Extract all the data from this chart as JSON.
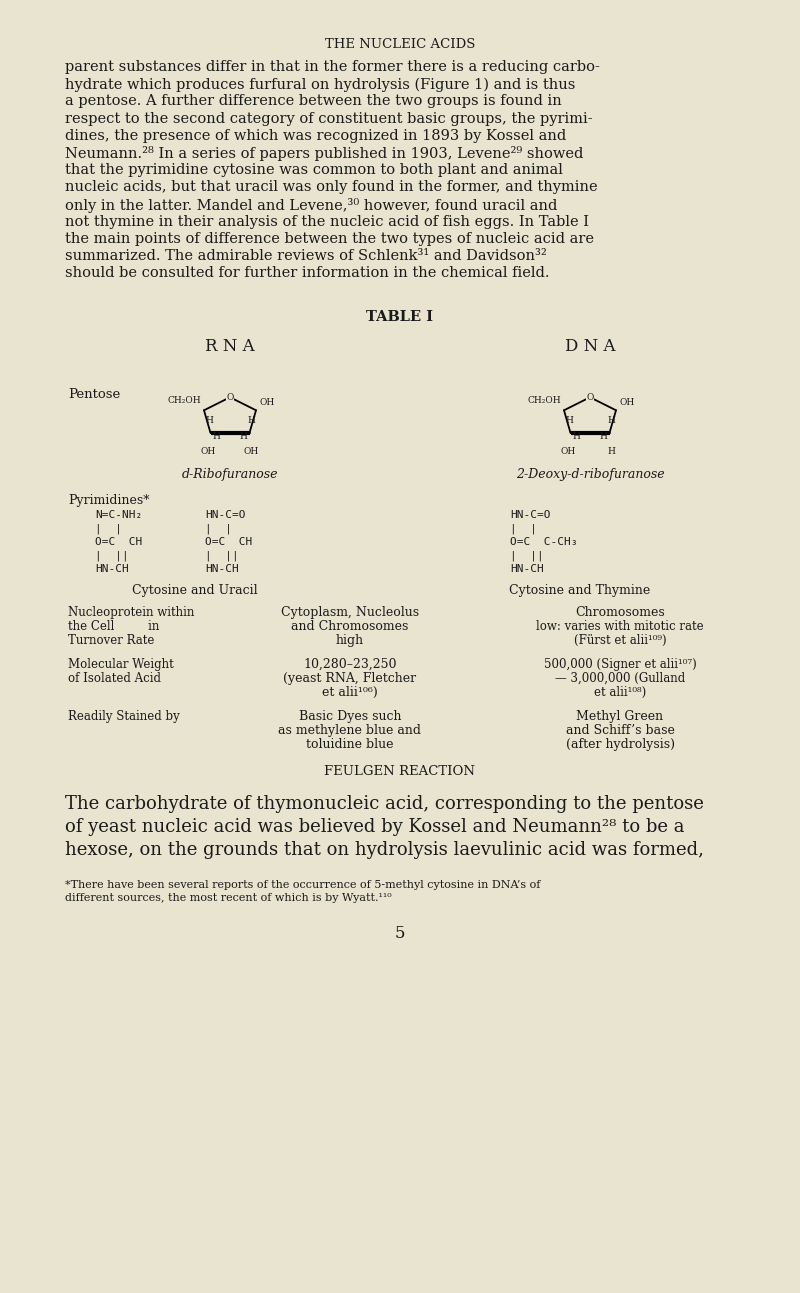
{
  "bg_color": "#e8e4d0",
  "text_color": "#1a1a1a",
  "header": "THE NUCLEIC ACIDS",
  "table_title": "TABLE I",
  "rna_label": "R N A",
  "dna_label": "D N A",
  "pentose_label": "Pentose",
  "ribo_label": "d-Ribofuranose",
  "deoxy_label": "2-Deoxy-d-ribofuranose",
  "pyrimidines_label": "Pyrimidines*",
  "cyto_uracil_label": "Cytosine and Uracil",
  "cyto_thymine_label": "Cytosine and Thymine",
  "feulgen": "FEULGEN REACTION",
  "page_number": "5",
  "para_lines": [
    "parent substances differ in that in the former there is a reducing carbo-",
    "hydrate which produces furfural on hydrolysis (Figure 1) and is thus",
    "a pentose. A further difference between the two groups is found in",
    "respect to the second category of constituent basic groups, the pyrimi-",
    "dines, the presence of which was recognized in 1893 by Kossel and",
    "Neumann.²⁸ In a series of papers published in 1903, Levene²⁹ showed",
    "that the pyrimidine cytosine was common to both plant and animal",
    "nucleic acids, but that uracil was only found in the former, and thymine",
    "only in the latter. Mandel and Levene,³⁰ however, found uracil and",
    "not thymine in their analysis of the nucleic acid of fish eggs. In Table I",
    "the main points of difference between the two types of nucleic acid are",
    "summarized. The admirable reviews of Schlenk³¹ and Davidson³²",
    "should be consulted for further information in the chemical field."
  ],
  "large_lines": [
    "The carbohydrate of thymonucleic acid, corresponding to the pentose",
    "of yeast nucleic acid was believed by Kossel and Neumann²⁸ to be a",
    "hexose, on the grounds that on hydrolysis laevulinic acid was formed,"
  ],
  "footnote_lines": [
    "*There have been several reports of the occurrence of 5-methyl cytosine in DNA’s of",
    "different sources, the most recent of which is by Wyatt.¹¹⁰"
  ]
}
